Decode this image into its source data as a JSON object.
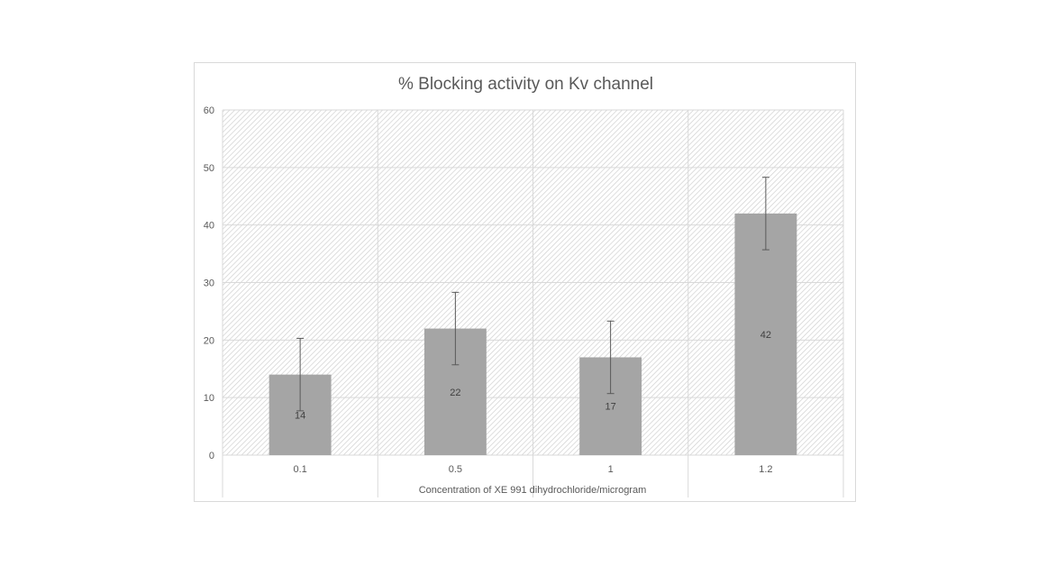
{
  "chart_data": {
    "type": "bar",
    "title": "% Blocking activity on Kv channel",
    "xlabel": "Concentration of XE 991 dihydrochloride/microgram",
    "ylabel": "",
    "categories": [
      "0.1",
      "0.5",
      "1",
      "1.2"
    ],
    "values": [
      14,
      22,
      17,
      42
    ],
    "error": [
      6.3,
      6.3,
      6.3,
      6.3
    ],
    "data_labels": [
      "14",
      "22",
      "17",
      "42"
    ],
    "ylim": [
      0,
      60
    ],
    "yticks": [
      0,
      10,
      20,
      30,
      40,
      50,
      60
    ],
    "ytick_labels": [
      "0",
      "10",
      "20",
      "30",
      "40",
      "50",
      "60"
    ],
    "grid": true,
    "legend": "none",
    "colors": {
      "bar": "#a5a5a5",
      "gridline": "#d9d9d9",
      "error_bar": "#595959",
      "plot_hatch": "#d0d0d0"
    }
  }
}
